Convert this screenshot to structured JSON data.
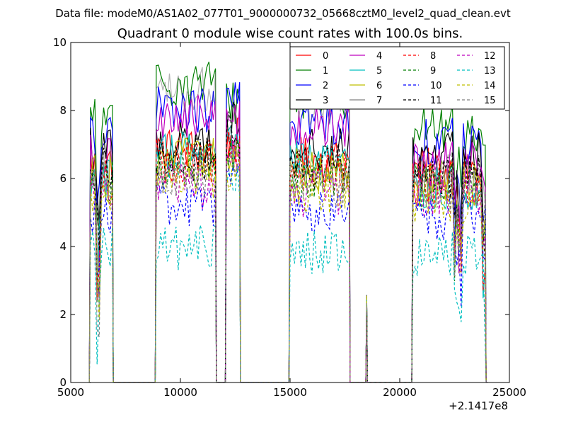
{
  "header": {
    "suptitle": "Data file: modeM0/AS1A02_077T01_9000000732_05668cztM0_level2_quad_clean.evt"
  },
  "chart_data": {
    "type": "line",
    "title": "Quadrant 0 module wise count rates with 100.0s bins.",
    "xlabel": "",
    "ylabel": "",
    "x_offset_label": "+2.1417e8",
    "xlim": [
      5000,
      25000
    ],
    "ylim": [
      0,
      10
    ],
    "x_ticks": [
      5000,
      10000,
      15000,
      20000,
      25000
    ],
    "y_ticks": [
      0,
      2,
      4,
      6,
      8,
      10
    ],
    "legend_position": "top-right",
    "legend_columns": 4,
    "segments": [
      [
        5900,
        6900
      ],
      [
        8900,
        11600
      ],
      [
        12100,
        12700
      ],
      [
        15000,
        17700
      ],
      [
        18500,
        18500
      ],
      [
        20600,
        23900
      ]
    ],
    "gaps_zero": true,
    "series": [
      {
        "name": "0",
        "color": "#ff0000",
        "dash": "solid",
        "level": 6.4,
        "level_hi": 6.8,
        "level_peak": 7.1
      },
      {
        "name": "1",
        "color": "#007f00",
        "dash": "solid",
        "level": 7.7,
        "level_hi": 8.8,
        "level_peak": 8.3
      },
      {
        "name": "2",
        "color": "#0000ff",
        "dash": "solid",
        "level": 7.3,
        "level_hi": 8.0,
        "level_peak": 8.2
      },
      {
        "name": "3",
        "color": "#000000",
        "dash": "solid",
        "level": 6.9,
        "level_hi": 7.1,
        "level_peak": 7.6
      },
      {
        "name": "4",
        "color": "#bf00bf",
        "dash": "solid",
        "level": 6.6,
        "level_hi": 7.8,
        "level_peak": 7.7
      },
      {
        "name": "5",
        "color": "#00bfbf",
        "dash": "solid",
        "level": 5.9,
        "level_hi": 6.7,
        "level_peak": 6.9
      },
      {
        "name": "6",
        "color": "#bfbf00",
        "dash": "solid",
        "level": 6.0,
        "level_hi": 6.5,
        "level_peak": 6.6
      },
      {
        "name": "7",
        "color": "#808080",
        "dash": "solid",
        "level": 6.3,
        "level_hi": 8.6,
        "level_peak": 7.0
      },
      {
        "name": "8",
        "color": "#ff0000",
        "dash": "dashed",
        "level": 6.0,
        "level_hi": 6.5,
        "level_peak": 6.8
      },
      {
        "name": "9",
        "color": "#007f00",
        "dash": "dashed",
        "level": 5.9,
        "level_hi": 6.2,
        "level_peak": 6.7
      },
      {
        "name": "10",
        "color": "#0000ff",
        "dash": "dashed",
        "level": 5.0,
        "level_hi": 5.2,
        "level_peak": 6.1
      },
      {
        "name": "11",
        "color": "#000000",
        "dash": "dashed",
        "level": 6.3,
        "level_hi": 6.6,
        "level_peak": 7.3
      },
      {
        "name": "12",
        "color": "#bf00bf",
        "dash": "dashed",
        "level": 5.7,
        "level_hi": 5.8,
        "level_peak": 6.8
      },
      {
        "name": "13",
        "color": "#00bfbf",
        "dash": "dashed",
        "level": 3.9,
        "level_hi": 4.0,
        "level_peak": 5.9
      },
      {
        "name": "14",
        "color": "#bfbf00",
        "dash": "dashed",
        "level": 5.5,
        "level_hi": 5.9,
        "level_peak": 6.3
      },
      {
        "name": "15",
        "color": "#808080",
        "dash": "dashed",
        "level": 5.8,
        "level_hi": 6.1,
        "level_peak": 6.6
      }
    ]
  }
}
